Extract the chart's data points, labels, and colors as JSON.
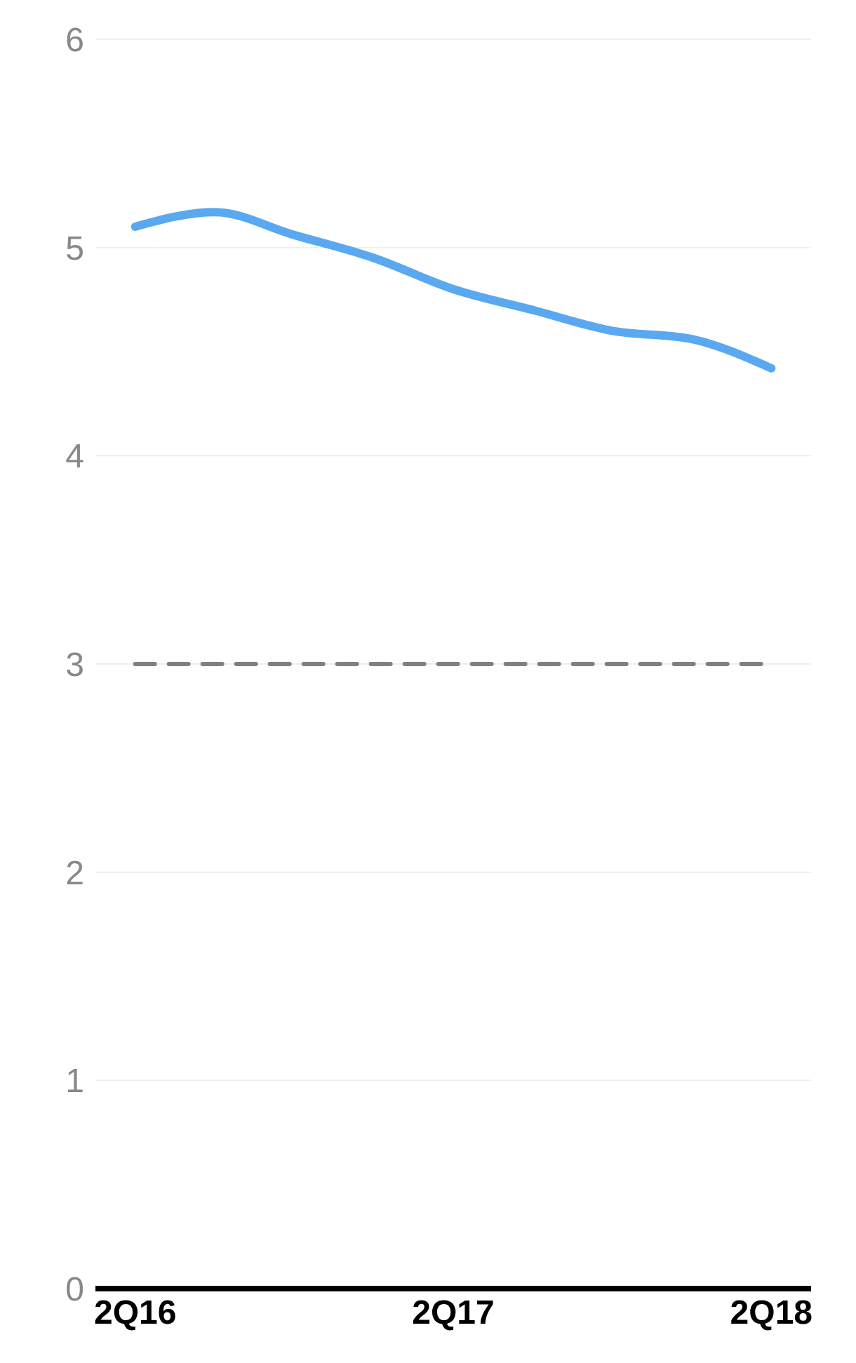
{
  "chart_data": {
    "type": "line",
    "categories": [
      "2Q16",
      null,
      null,
      null,
      "2Q17",
      null,
      null,
      null,
      "2Q18"
    ],
    "series": [
      {
        "color": "#5aa9f0",
        "values": [
          5.1,
          5.17,
          5.06,
          4.95,
          4.8,
          4.7,
          4.6,
          4.56,
          4.42
        ]
      },
      {
        "color": "#808080",
        "line_style": "dashed",
        "values": [
          3,
          3,
          3,
          3,
          3,
          3,
          3,
          3,
          3
        ]
      }
    ],
    "ylim": [
      0,
      6
    ],
    "yticks": [
      0,
      1,
      2,
      3,
      4,
      5,
      6
    ],
    "grid": "y",
    "marker": "none"
  }
}
